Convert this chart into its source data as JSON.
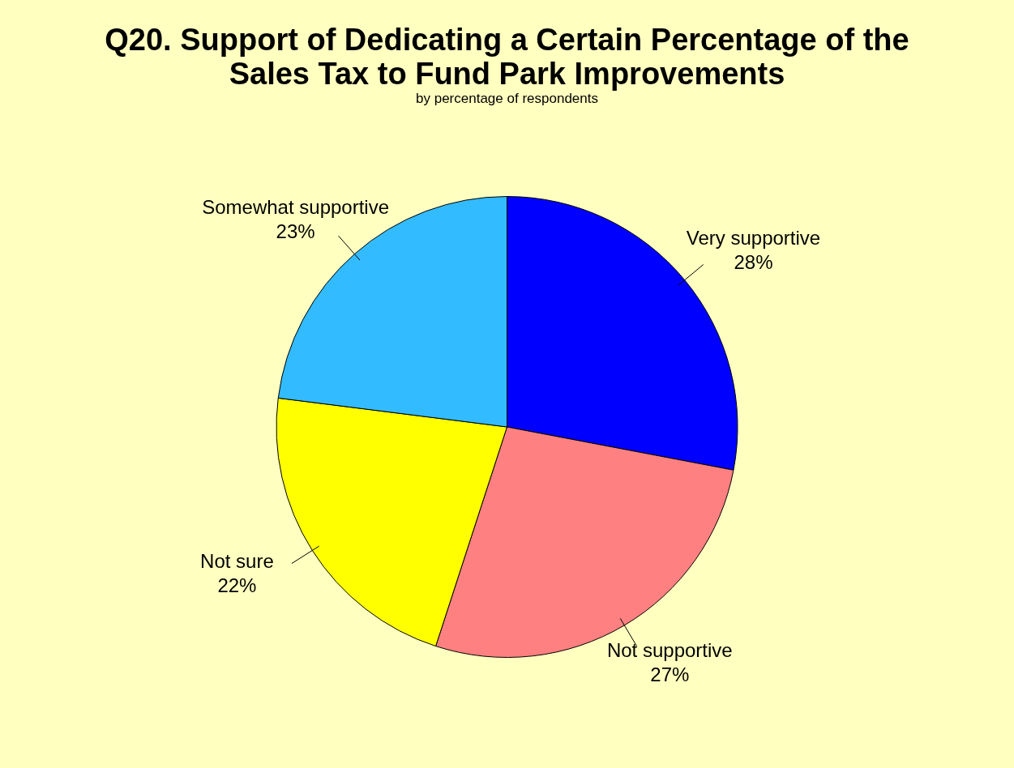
{
  "chart_data": {
    "type": "pie",
    "title": "Q20. Support of Dedicating a Certain Percentage of the Sales Tax to Fund Park Improvements",
    "subtitle": "by percentage of respondents",
    "categories": [
      "Very supportive",
      "Not supportive",
      "Not sure",
      "Somewhat supportive"
    ],
    "values": [
      28,
      27,
      22,
      23
    ],
    "value_labels": [
      "28%",
      "27%",
      "22%",
      "23%"
    ],
    "colors": [
      "#0000ff",
      "#ff8080",
      "#ffff00",
      "#33bbff"
    ],
    "legend": false
  }
}
